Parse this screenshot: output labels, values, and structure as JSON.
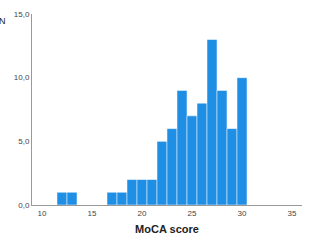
{
  "chart_data": {
    "type": "histogram",
    "x_label": "MoCA score",
    "y_label": "N",
    "bins": [
      11.5,
      12.5,
      13.5,
      14.5,
      15.5,
      16.5,
      17.5,
      18.5,
      19.5,
      20.5,
      21.5,
      22.5,
      23.5,
      24.5,
      25.5,
      26.5,
      27.5,
      28.5,
      29.5,
      30.5
    ],
    "values": [
      1,
      1,
      0,
      0,
      0,
      1,
      1,
      2,
      2,
      2,
      5,
      6,
      9,
      7,
      8,
      13,
      9,
      6,
      10
    ],
    "color": "#1f8fe6",
    "xlim": [
      9,
      36
    ],
    "xticks": [
      10,
      15,
      20,
      25,
      30,
      35
    ],
    "ylim": [
      0,
      15
    ],
    "yticks": [
      {
        "value": 0,
        "label": "0,0"
      },
      {
        "value": 5,
        "label": "5,0"
      },
      {
        "value": 10,
        "label": "10,0"
      },
      {
        "value": 15,
        "label": "15,0"
      }
    ],
    "grid": false
  }
}
